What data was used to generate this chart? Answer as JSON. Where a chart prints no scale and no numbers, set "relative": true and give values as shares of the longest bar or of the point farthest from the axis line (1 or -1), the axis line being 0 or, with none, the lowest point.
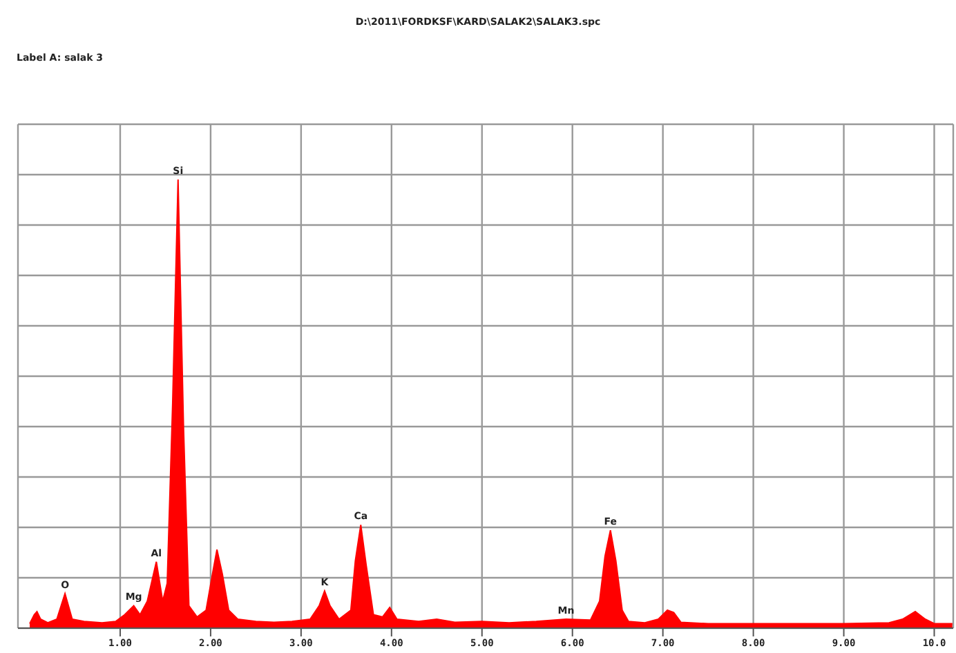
{
  "chart_data": {
    "type": "area",
    "title": "D:\\2011\\FORDKSF\\KARD\\SALAK2\\SALAK3.spc",
    "subtitle": "Label A: salak 3",
    "relative": true,
    "grid": true,
    "xlim": [
      -0.13,
      10.21
    ],
    "xticks": [
      {
        "value": 1,
        "label": "1.00"
      },
      {
        "value": 2,
        "label": "2.00"
      },
      {
        "value": 3,
        "label": "3.00"
      },
      {
        "value": 4,
        "label": "4.00"
      },
      {
        "value": 5,
        "label": "5.00"
      },
      {
        "value": 6,
        "label": "6.00"
      },
      {
        "value": 7,
        "label": "7.00"
      },
      {
        "value": 8,
        "label": "8.00"
      },
      {
        "value": 9,
        "label": "9.00"
      },
      {
        "value": 10,
        "label": "10.0"
      }
    ],
    "x": [
      0.0,
      0.05,
      0.08,
      0.12,
      0.2,
      0.3,
      0.39,
      0.47,
      0.6,
      0.8,
      0.95,
      1.05,
      1.15,
      1.22,
      1.3,
      1.4,
      1.47,
      1.52,
      1.58,
      1.64,
      1.7,
      1.76,
      1.85,
      1.95,
      2.02,
      2.07,
      2.13,
      2.2,
      2.3,
      2.5,
      2.7,
      2.9,
      3.1,
      3.2,
      3.26,
      3.32,
      3.42,
      3.55,
      3.6,
      3.66,
      3.72,
      3.8,
      3.9,
      3.98,
      4.06,
      4.3,
      4.5,
      4.7,
      5.0,
      5.3,
      5.6,
      5.93,
      6.2,
      6.3,
      6.36,
      6.42,
      6.48,
      6.55,
      6.62,
      6.8,
      6.95,
      7.05,
      7.12,
      7.2,
      7.5,
      8.0,
      8.5,
      9.0,
      9.5,
      9.65,
      9.79,
      9.9,
      10.0,
      10.2
    ],
    "series": [
      {
        "color": "#ff0000",
        "values": [
          0.01,
          0.03,
          0.037,
          0.02,
          0.012,
          0.02,
          0.077,
          0.02,
          0.015,
          0.012,
          0.015,
          0.03,
          0.05,
          0.03,
          0.06,
          0.148,
          0.06,
          0.1,
          0.5,
          1.0,
          0.45,
          0.05,
          0.025,
          0.04,
          0.12,
          0.175,
          0.12,
          0.04,
          0.02,
          0.015,
          0.013,
          0.015,
          0.02,
          0.05,
          0.083,
          0.05,
          0.02,
          0.04,
          0.15,
          0.23,
          0.14,
          0.03,
          0.025,
          0.046,
          0.02,
          0.015,
          0.02,
          0.013,
          0.015,
          0.012,
          0.015,
          0.02,
          0.018,
          0.06,
          0.16,
          0.218,
          0.15,
          0.04,
          0.015,
          0.012,
          0.02,
          0.04,
          0.035,
          0.013,
          0.01,
          0.01,
          0.01,
          0.01,
          0.012,
          0.02,
          0.037,
          0.02,
          0.01,
          0.01
        ]
      }
    ],
    "annotations": [
      {
        "text": "O",
        "x": 0.39,
        "y": 0.077
      },
      {
        "text": "Mg",
        "x": 1.15,
        "y": 0.05
      },
      {
        "text": "Al",
        "x": 1.4,
        "y": 0.148
      },
      {
        "text": "Si",
        "x": 1.64,
        "y": 1.0
      },
      {
        "text": "K",
        "x": 3.26,
        "y": 0.083
      },
      {
        "text": "Ca",
        "x": 3.66,
        "y": 0.23
      },
      {
        "text": "Mn",
        "x": 5.93,
        "y": 0.02
      },
      {
        "text": "Fe",
        "x": 6.42,
        "y": 0.218
      }
    ]
  }
}
